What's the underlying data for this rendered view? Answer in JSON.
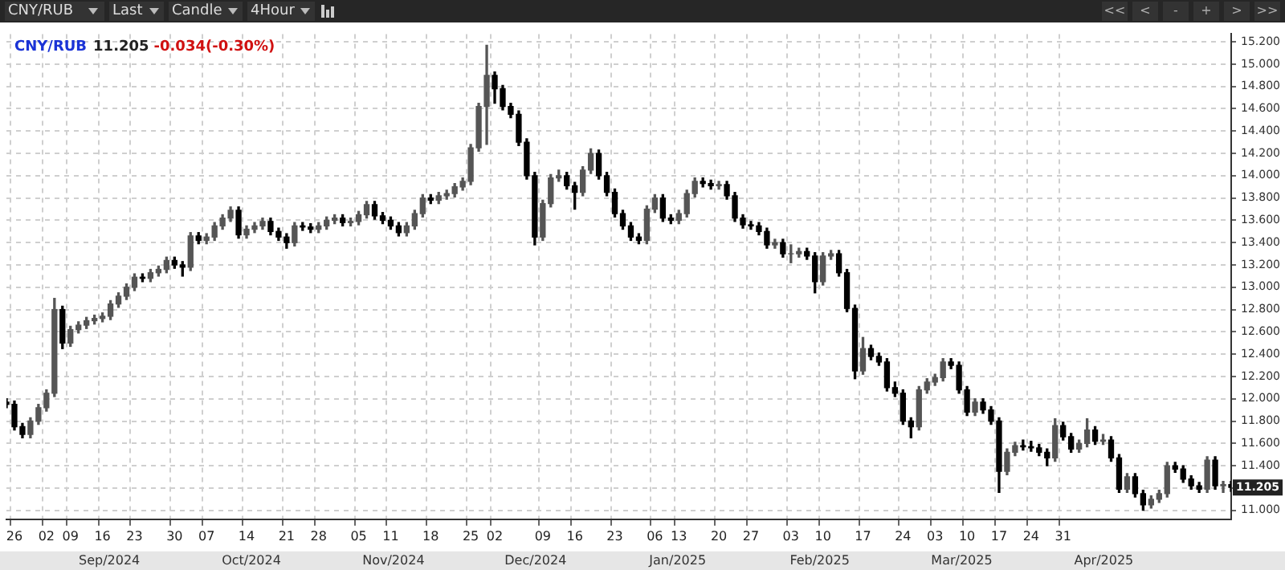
{
  "chart_data": {
    "type": "candlestick",
    "title": "CNY/RUB",
    "subtitle": "11.205",
    "annotations": [
      "-0.034(-0.30%)",
      "CNY/RUB",
      "Last",
      "Candle",
      "4Hour",
      "<<",
      "<",
      "-",
      "+",
      ">",
      ">>",
      "Sep/2024",
      "Oct/2024",
      "Nov/2024",
      "Dec/2024",
      "Jan/2025",
      "Feb/2025",
      "Mar/2025",
      "Apr/2025",
      {
        "text": "11.205",
        "y": 11.205
      }
    ],
    "categories": [
      null,
      "26",
      null,
      null,
      null,
      "02",
      null,
      null,
      "09",
      null,
      null,
      null,
      "16",
      null,
      null,
      null,
      "23",
      null,
      null,
      null,
      null,
      "30",
      null,
      null,
      null,
      "07",
      null,
      null,
      null,
      null,
      "14",
      null,
      null,
      null,
      null,
      "21",
      null,
      null,
      null,
      "28",
      null,
      null,
      null,
      null,
      "05",
      null,
      null,
      null,
      "11",
      null,
      null,
      null,
      null,
      "18",
      null,
      null,
      null,
      null,
      "25",
      null,
      null,
      "02",
      null,
      null,
      null,
      null,
      null,
      "09",
      null,
      null,
      null,
      "16",
      null,
      null,
      null,
      null,
      "23",
      null,
      null,
      null,
      null,
      "06",
      null,
      null,
      "13",
      null,
      null,
      null,
      null,
      "20",
      null,
      null,
      null,
      "27",
      null,
      null,
      null,
      null,
      "03",
      null,
      null,
      null,
      "10",
      null,
      null,
      null,
      null,
      "17",
      null,
      null,
      null,
      null,
      "24",
      null,
      null,
      null,
      "03",
      null,
      null,
      null,
      "10",
      null,
      null,
      null,
      "17",
      null,
      null,
      null,
      "24",
      null,
      null,
      null,
      "31",
      null,
      null,
      null,
      null,
      null,
      null,
      null,
      null,
      null,
      null,
      null,
      null,
      null,
      null,
      null,
      null,
      null,
      null,
      null,
      null,
      null
    ],
    "ohlc": [
      [
        11.97,
        12.0,
        11.92,
        11.95
      ],
      [
        11.95,
        11.98,
        11.72,
        11.75
      ],
      [
        11.75,
        11.78,
        11.65,
        11.68
      ],
      [
        11.68,
        11.83,
        11.65,
        11.8
      ],
      [
        11.8,
        11.95,
        11.77,
        11.92
      ],
      [
        11.92,
        12.08,
        11.89,
        12.05
      ],
      [
        12.05,
        12.9,
        12.02,
        12.8
      ],
      [
        12.8,
        12.83,
        12.45,
        12.5
      ],
      [
        12.5,
        12.65,
        12.47,
        12.62
      ],
      [
        12.62,
        12.69,
        12.59,
        12.66
      ],
      [
        12.66,
        12.73,
        12.63,
        12.7
      ],
      [
        12.7,
        12.75,
        12.67,
        12.72
      ],
      [
        12.72,
        12.77,
        12.69,
        12.74
      ],
      [
        12.74,
        12.88,
        12.71,
        12.85
      ],
      [
        12.85,
        12.95,
        12.82,
        12.92
      ],
      [
        12.92,
        13.03,
        12.89,
        13.0
      ],
      [
        13.0,
        13.12,
        12.97,
        13.09
      ],
      [
        13.09,
        13.12,
        13.05,
        13.08
      ],
      [
        13.08,
        13.16,
        13.05,
        13.13
      ],
      [
        13.13,
        13.19,
        13.1,
        13.16
      ],
      [
        13.16,
        13.27,
        13.13,
        13.24
      ],
      [
        13.24,
        13.27,
        13.17,
        13.2
      ],
      [
        13.2,
        13.23,
        13.1,
        13.18
      ],
      [
        13.18,
        13.49,
        13.15,
        13.46
      ],
      [
        13.46,
        13.49,
        13.39,
        13.42
      ],
      [
        13.42,
        13.48,
        13.39,
        13.45
      ],
      [
        13.45,
        13.58,
        13.42,
        13.55
      ],
      [
        13.55,
        13.65,
        13.52,
        13.62
      ],
      [
        13.62,
        13.72,
        13.59,
        13.69
      ],
      [
        13.69,
        13.72,
        13.44,
        13.47
      ],
      [
        13.47,
        13.55,
        13.44,
        13.52
      ],
      [
        13.52,
        13.58,
        13.49,
        13.55
      ],
      [
        13.55,
        13.62,
        13.52,
        13.59
      ],
      [
        13.59,
        13.62,
        13.47,
        13.5
      ],
      [
        13.5,
        13.53,
        13.42,
        13.45
      ],
      [
        13.45,
        13.48,
        13.35,
        13.4
      ],
      [
        13.4,
        13.58,
        13.37,
        13.55
      ],
      [
        13.55,
        13.58,
        13.51,
        13.54
      ],
      [
        13.54,
        13.57,
        13.49,
        13.52
      ],
      [
        13.52,
        13.58,
        13.49,
        13.55
      ],
      [
        13.55,
        13.63,
        13.52,
        13.6
      ],
      [
        13.6,
        13.65,
        13.57,
        13.62
      ],
      [
        13.62,
        13.65,
        13.55,
        13.58
      ],
      [
        13.58,
        13.62,
        13.55,
        13.59
      ],
      [
        13.59,
        13.68,
        13.56,
        13.65
      ],
      [
        13.65,
        13.77,
        13.62,
        13.74
      ],
      [
        13.74,
        13.77,
        13.61,
        13.64
      ],
      [
        13.64,
        13.67,
        13.57,
        13.6
      ],
      [
        13.6,
        13.63,
        13.52,
        13.55
      ],
      [
        13.55,
        13.58,
        13.46,
        13.49
      ],
      [
        13.49,
        13.58,
        13.46,
        13.55
      ],
      [
        13.55,
        13.69,
        13.52,
        13.66
      ],
      [
        13.66,
        13.83,
        13.63,
        13.8
      ],
      [
        13.8,
        13.83,
        13.75,
        13.78
      ],
      [
        13.78,
        13.85,
        13.75,
        13.82
      ],
      [
        13.82,
        13.87,
        13.79,
        13.84
      ],
      [
        13.84,
        13.93,
        13.81,
        13.9
      ],
      [
        13.9,
        13.98,
        13.87,
        13.95
      ],
      [
        13.95,
        14.28,
        13.92,
        14.25
      ],
      [
        14.25,
        14.65,
        14.22,
        14.62
      ],
      [
        14.62,
        15.17,
        14.28,
        14.9
      ],
      [
        14.9,
        14.93,
        14.65,
        14.78
      ],
      [
        14.78,
        14.81,
        14.59,
        14.62
      ],
      [
        14.62,
        14.65,
        14.52,
        14.55
      ],
      [
        14.55,
        14.58,
        14.27,
        14.3
      ],
      [
        14.3,
        14.33,
        13.97,
        14.0
      ],
      [
        14.0,
        14.03,
        13.38,
        13.45
      ],
      [
        13.45,
        13.78,
        13.42,
        13.75
      ],
      [
        13.75,
        14.01,
        13.72,
        13.98
      ],
      [
        13.98,
        14.05,
        13.95,
        14.0
      ],
      [
        14.0,
        14.03,
        13.88,
        13.91
      ],
      [
        13.91,
        13.94,
        13.7,
        13.85
      ],
      [
        13.85,
        14.08,
        13.82,
        14.05
      ],
      [
        14.05,
        14.24,
        14.02,
        14.2
      ],
      [
        14.2,
        14.23,
        13.97,
        14.0
      ],
      [
        14.0,
        14.03,
        13.82,
        13.85
      ],
      [
        13.85,
        13.88,
        13.63,
        13.66
      ],
      [
        13.66,
        13.69,
        13.52,
        13.55
      ],
      [
        13.55,
        13.58,
        13.42,
        13.45
      ],
      [
        13.45,
        13.48,
        13.39,
        13.42
      ],
      [
        13.42,
        13.73,
        13.39,
        13.7
      ],
      [
        13.7,
        13.83,
        13.67,
        13.8
      ],
      [
        13.8,
        13.83,
        13.59,
        13.62
      ],
      [
        13.62,
        13.65,
        13.57,
        13.6
      ],
      [
        13.6,
        13.69,
        13.57,
        13.66
      ],
      [
        13.66,
        13.87,
        13.63,
        13.84
      ],
      [
        13.84,
        13.98,
        13.81,
        13.95
      ],
      [
        13.95,
        13.98,
        13.9,
        13.93
      ],
      [
        13.93,
        13.96,
        13.88,
        13.91
      ],
      [
        13.91,
        13.95,
        13.88,
        13.92
      ],
      [
        13.92,
        13.95,
        13.79,
        13.82
      ],
      [
        13.82,
        13.85,
        13.59,
        13.62
      ],
      [
        13.62,
        13.65,
        13.53,
        13.56
      ],
      [
        13.56,
        13.59,
        13.52,
        13.55
      ],
      [
        13.55,
        13.58,
        13.47,
        13.5
      ],
      [
        13.5,
        13.53,
        13.35,
        13.38
      ],
      [
        13.38,
        13.43,
        13.35,
        13.4
      ],
      [
        13.4,
        13.43,
        13.27,
        13.3
      ],
      [
        13.3,
        13.38,
        13.22,
        13.3
      ],
      [
        13.3,
        13.35,
        13.27,
        13.32
      ],
      [
        13.32,
        13.35,
        13.25,
        13.28
      ],
      [
        13.28,
        13.31,
        12.95,
        13.05
      ],
      [
        13.05,
        13.31,
        13.02,
        13.28
      ],
      [
        13.28,
        13.33,
        13.25,
        13.3
      ],
      [
        13.3,
        13.33,
        13.1,
        13.13
      ],
      [
        13.13,
        13.16,
        12.78,
        12.81
      ],
      [
        12.81,
        12.84,
        12.18,
        12.25
      ],
      [
        12.25,
        12.55,
        12.22,
        12.45
      ],
      [
        12.45,
        12.48,
        12.35,
        12.38
      ],
      [
        12.38,
        12.41,
        12.3,
        12.33
      ],
      [
        12.33,
        12.36,
        12.07,
        12.1
      ],
      [
        12.1,
        12.15,
        12.02,
        12.05
      ],
      [
        12.05,
        12.08,
        11.77,
        11.8
      ],
      [
        11.8,
        11.83,
        11.65,
        11.75
      ],
      [
        11.75,
        12.11,
        11.72,
        12.08
      ],
      [
        12.08,
        12.18,
        12.05,
        12.15
      ],
      [
        12.15,
        12.22,
        12.12,
        12.19
      ],
      [
        12.19,
        12.36,
        12.16,
        12.33
      ],
      [
        12.33,
        12.36,
        12.27,
        12.3
      ],
      [
        12.3,
        12.33,
        12.05,
        12.08
      ],
      [
        12.08,
        12.11,
        11.85,
        11.88
      ],
      [
        11.88,
        12.0,
        11.85,
        11.97
      ],
      [
        11.97,
        12.0,
        11.87,
        11.9
      ],
      [
        11.9,
        11.93,
        11.77,
        11.8
      ],
      [
        11.8,
        11.83,
        11.16,
        11.35
      ],
      [
        11.35,
        11.55,
        11.32,
        11.52
      ],
      [
        11.52,
        11.61,
        11.49,
        11.58
      ],
      [
        11.58,
        11.63,
        11.54,
        11.57
      ],
      [
        11.57,
        11.62,
        11.53,
        11.56
      ],
      [
        11.56,
        11.59,
        11.49,
        11.52
      ],
      [
        11.52,
        11.55,
        11.4,
        11.47
      ],
      [
        11.47,
        11.82,
        11.44,
        11.76
      ],
      [
        11.76,
        11.79,
        11.63,
        11.66
      ],
      [
        11.66,
        11.69,
        11.52,
        11.55
      ],
      [
        11.55,
        11.63,
        11.52,
        11.6
      ],
      [
        11.6,
        11.82,
        11.57,
        11.72
      ],
      [
        11.72,
        11.75,
        11.59,
        11.62
      ],
      [
        11.62,
        11.68,
        11.59,
        11.63
      ],
      [
        11.63,
        11.66,
        11.44,
        11.47
      ],
      [
        11.47,
        11.5,
        11.16,
        11.19
      ],
      [
        11.19,
        11.33,
        11.16,
        11.3
      ],
      [
        11.3,
        11.33,
        11.12,
        11.15
      ],
      [
        11.15,
        11.18,
        11.0,
        11.05
      ],
      [
        11.05,
        11.13,
        11.02,
        11.1
      ],
      [
        11.1,
        11.18,
        11.07,
        11.15
      ],
      [
        11.15,
        11.43,
        11.12,
        11.4
      ],
      [
        11.4,
        11.43,
        11.34,
        11.37
      ],
      [
        11.37,
        11.4,
        11.25,
        11.28
      ],
      [
        11.28,
        11.31,
        11.19,
        11.22
      ],
      [
        11.22,
        11.25,
        11.16,
        11.19
      ],
      [
        11.19,
        11.48,
        11.16,
        11.45
      ],
      [
        11.45,
        11.48,
        11.19,
        11.22
      ],
      [
        11.22,
        11.26,
        11.16,
        11.23
      ],
      [
        11.23,
        11.26,
        11.17,
        11.205
      ]
    ],
    "ylim": [
      10.92,
      15.27
    ],
    "yticks": [
      {
        "value": 11.0,
        "label": "11.000"
      },
      {
        "value": 11.2,
        "label": null
      },
      {
        "value": 11.4,
        "label": "11.400"
      },
      {
        "value": 11.6,
        "label": "11.600"
      },
      {
        "value": 11.8,
        "label": "11.800"
      },
      {
        "value": 12.0,
        "label": "12.000"
      },
      {
        "value": 12.2,
        "label": "12.200"
      },
      {
        "value": 12.4,
        "label": "12.400"
      },
      {
        "value": 12.6,
        "label": "12.600"
      },
      {
        "value": 12.8,
        "label": "12.800"
      },
      {
        "value": 13.0,
        "label": "13.000"
      },
      {
        "value": 13.2,
        "label": "13.200"
      },
      {
        "value": 13.4,
        "label": "13.400"
      },
      {
        "value": 13.6,
        "label": "13.600"
      },
      {
        "value": 13.8,
        "label": "13.800"
      },
      {
        "value": 14.0,
        "label": "14.000"
      },
      {
        "value": 14.2,
        "label": "14.200"
      },
      {
        "value": 14.4,
        "label": "14.400"
      },
      {
        "value": 14.6,
        "label": "14.600"
      },
      {
        "value": 14.8,
        "label": "14.800"
      },
      {
        "value": 15.0,
        "label": "15.000"
      },
      {
        "value": 15.2,
        "label": "15.200"
      }
    ],
    "grid": true,
    "legend": false
  }
}
